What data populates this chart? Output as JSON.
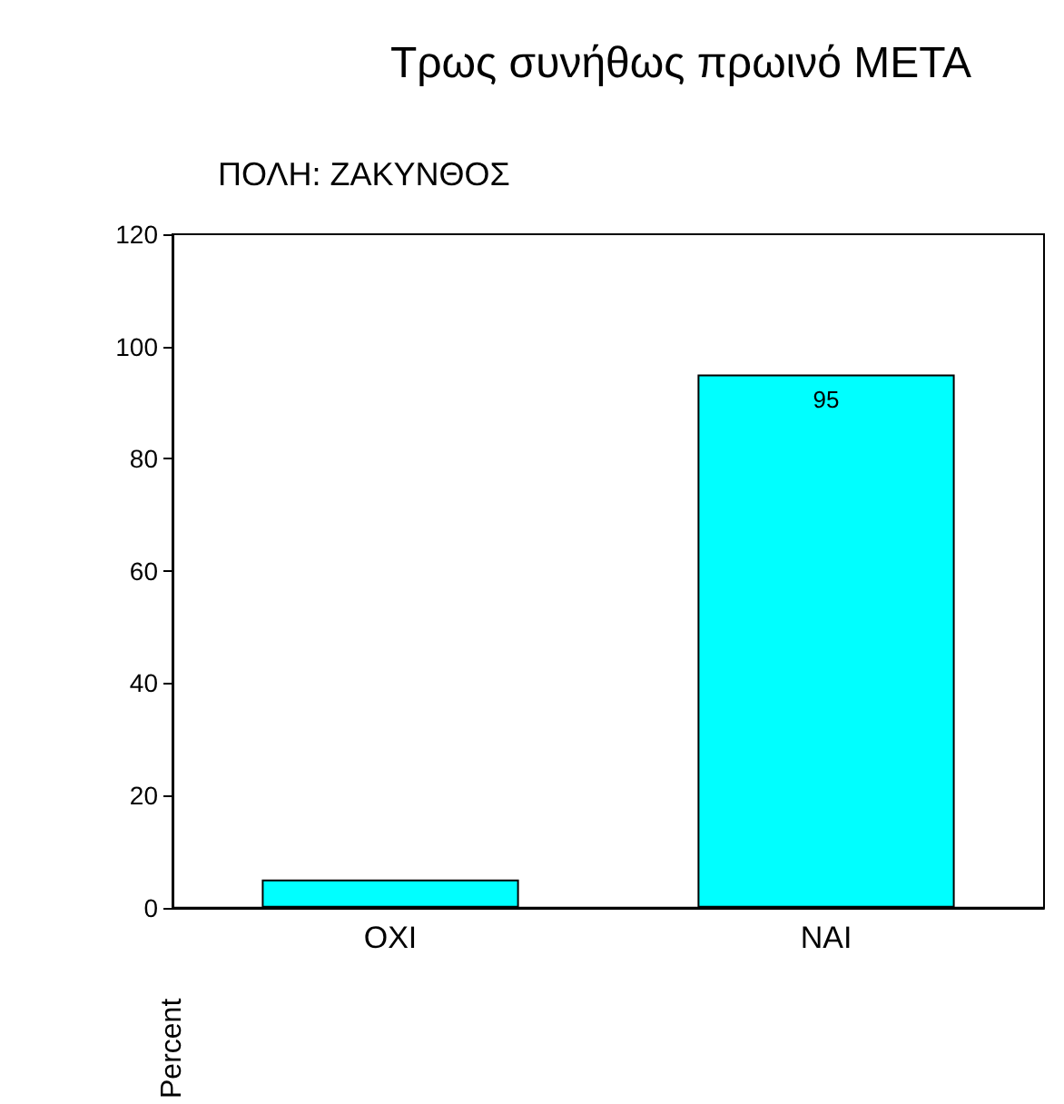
{
  "chart_data": {
    "type": "bar",
    "title": "Τρως συνήθως πρωινό ΜΕΤΑ",
    "subtitle": "ΠΟΛΗ: ΖΑΚΥΝΘΟΣ",
    "ylabel": "Percent",
    "categories": [
      "ΟΧΙ",
      "ΝΑΙ"
    ],
    "values": [
      5,
      95
    ],
    "value_labels": [
      null,
      "95"
    ],
    "color": "#00ffff",
    "ylim": [
      0,
      120
    ],
    "yticks": [
      0,
      20,
      40,
      60,
      80,
      100,
      120
    ],
    "grid": false
  }
}
